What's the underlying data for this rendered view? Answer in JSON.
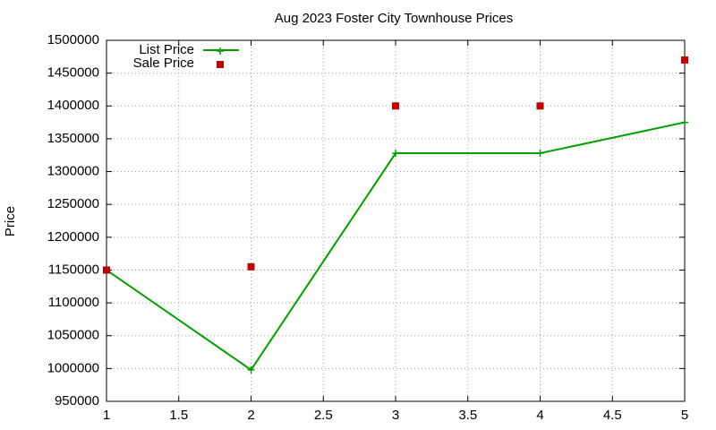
{
  "chart_data": {
    "type": "line",
    "title": "Aug 2023 Foster City Townhouse Prices",
    "y_label": "Price",
    "x": [
      1,
      2,
      3,
      4,
      5
    ],
    "series": [
      {
        "name": "List Price",
        "color": "#00a000",
        "style": "linespoints",
        "marker": "plus",
        "values": [
          1150000,
          998000,
          1328000,
          1328000,
          1375000
        ]
      },
      {
        "name": "Sale Price",
        "color": "#c00000",
        "style": "points",
        "marker": "square",
        "values": [
          1150000,
          1155000,
          1400000,
          1400000,
          1470000
        ]
      }
    ],
    "xlim": [
      1,
      5
    ],
    "xticks": [
      1,
      1.5,
      2,
      2.5,
      3,
      3.5,
      4,
      4.5,
      5
    ],
    "ylim": [
      950000,
      1500000
    ],
    "yticks": [
      950000,
      1000000,
      1050000,
      1100000,
      1150000,
      1200000,
      1250000,
      1300000,
      1350000,
      1400000,
      1450000,
      1500000
    ],
    "grid": true,
    "legend": "top-left"
  }
}
